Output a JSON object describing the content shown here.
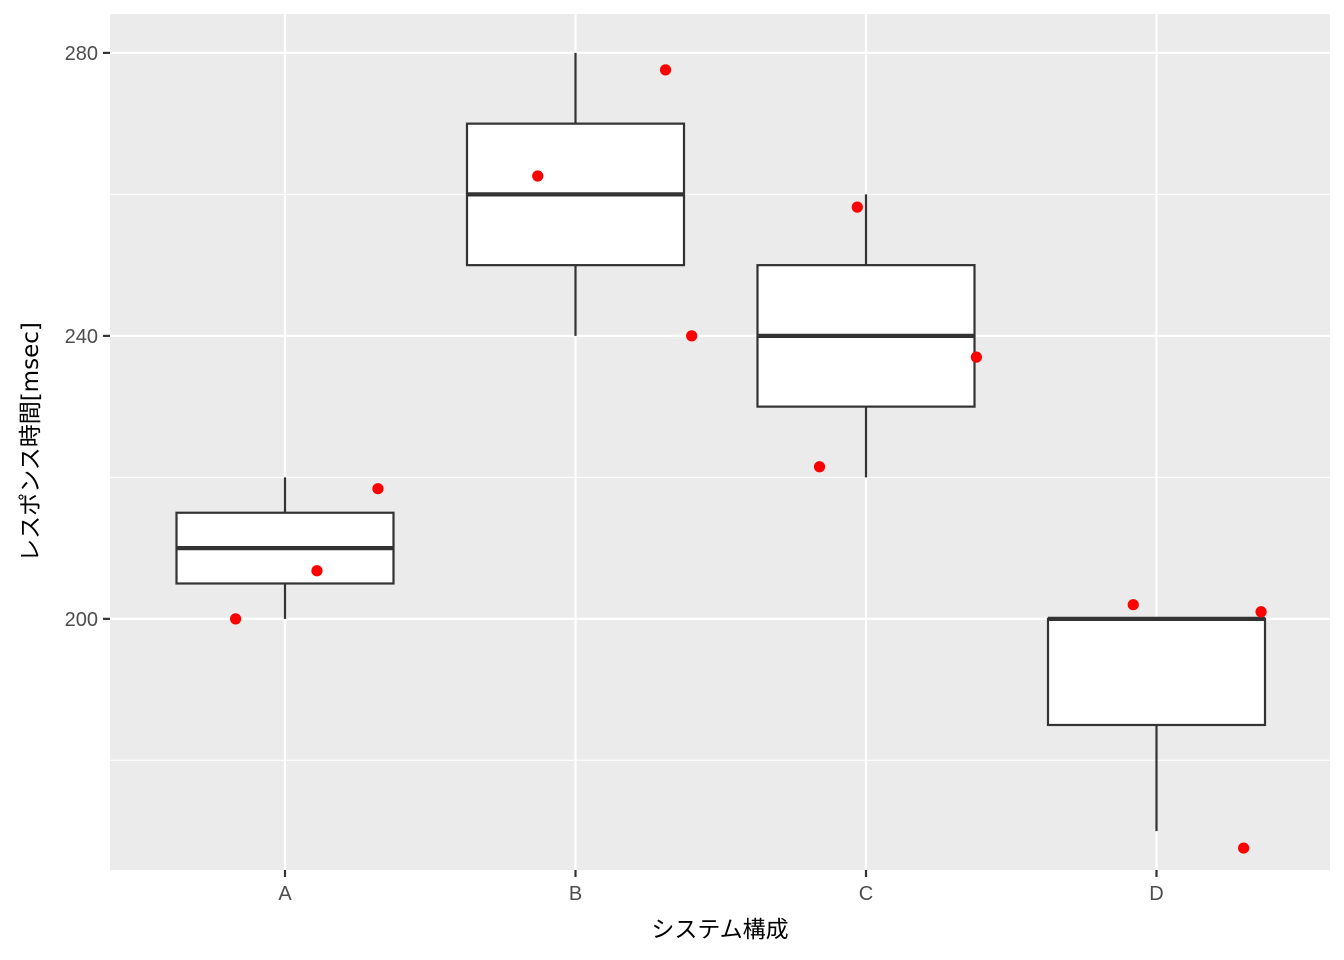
{
  "chart_data": {
    "type": "box",
    "xlabel": "システム構成",
    "ylabel": "レスポンス時間[msec]",
    "categories": [
      "A",
      "B",
      "C",
      "D"
    ],
    "ylim": [
      164.5,
      285.5
    ],
    "yticks": [
      200,
      240,
      280
    ],
    "yminor": [
      180,
      220,
      260
    ],
    "boxes": [
      {
        "category": "A",
        "whisker_low": 200,
        "q1": 205,
        "median": 210,
        "q3": 215,
        "whisker_high": 220
      },
      {
        "category": "B",
        "whisker_low": 240,
        "q1": 250,
        "median": 260,
        "q3": 270,
        "whisker_high": 280
      },
      {
        "category": "C",
        "whisker_low": 220,
        "q1": 230,
        "median": 240,
        "q3": 250,
        "whisker_high": 260
      },
      {
        "category": "D",
        "whisker_low": 170,
        "q1": 185,
        "median": 200,
        "q3": 200,
        "whisker_high": 200
      }
    ],
    "points": [
      {
        "category": "A",
        "jitter": -0.17,
        "y": 200
      },
      {
        "category": "A",
        "jitter": 0.11,
        "y": 206.8
      },
      {
        "category": "A",
        "jitter": 0.32,
        "y": 218.4
      },
      {
        "category": "B",
        "jitter": -0.13,
        "y": 262.6
      },
      {
        "category": "B",
        "jitter": 0.31,
        "y": 277.6
      },
      {
        "category": "B",
        "jitter": 0.4,
        "y": 240
      },
      {
        "category": "C",
        "jitter": -0.16,
        "y": 221.5
      },
      {
        "category": "C",
        "jitter": -0.03,
        "y": 258.2
      },
      {
        "category": "C",
        "jitter": 0.38,
        "y": 237
      },
      {
        "category": "D",
        "jitter": -0.08,
        "y": 202
      },
      {
        "category": "D",
        "jitter": 0.3,
        "y": 167.6
      },
      {
        "category": "D",
        "jitter": 0.36,
        "y": 201
      }
    ],
    "colors": {
      "panel": "#ebebeb",
      "grid": "#ffffff",
      "box_fill": "#ffffff",
      "box_line": "#333333",
      "point": "#ff0000",
      "tick": "#333333"
    },
    "grid": true,
    "legend": "none"
  }
}
